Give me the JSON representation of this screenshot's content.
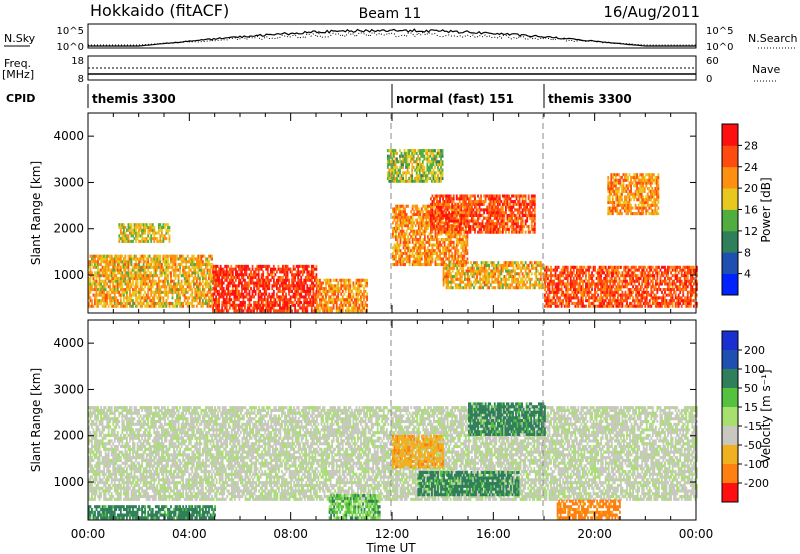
{
  "header": {
    "station": "Hokkaido (fitACF)",
    "beam": "Beam 11",
    "date": "16/Aug/2011"
  },
  "status_panels": {
    "nsky": {
      "label": "N.Sky",
      "ticks": [
        "10^5",
        "10^0"
      ]
    },
    "nsearch": {
      "label": "N.Search",
      "ticks": [
        "10^5",
        "10^0"
      ]
    },
    "freq": {
      "label_line1": "Freq.",
      "label_line2": "[MHz]",
      "ticks": [
        "18",
        "8"
      ]
    },
    "nave": {
      "label": "Nave",
      "ticks": [
        "60",
        "0"
      ]
    },
    "cpid": {
      "label": "CPID",
      "segments": [
        {
          "name": "themis 3300",
          "start_hour": 0
        },
        {
          "name": "normal (fast) 151",
          "start_hour": 12
        },
        {
          "name": "themis 3300",
          "start_hour": 18
        }
      ]
    }
  },
  "chart_data": [
    {
      "type": "heatmap",
      "panel": "power",
      "ylabel": "Slant Range [km]",
      "xlabel": "",
      "y_ticks": [
        "1000",
        "2000",
        "3000",
        "4000"
      ],
      "ylim": [
        180,
        4500
      ],
      "xlim_hours": [
        0,
        24
      ],
      "colorbar": {
        "label": "Power [dB]",
        "ticks": [
          "4",
          "8",
          "12",
          "16",
          "20",
          "24",
          "28"
        ],
        "colors": [
          "#0022ff",
          "#1f4fb0",
          "#2f7f5a",
          "#4fae3f",
          "#e8c81f",
          "#ff8f10",
          "#ff4a10",
          "#ff1010"
        ]
      },
      "regions": [
        {
          "t0": 4.9,
          "t1": 9.0,
          "r0": 200,
          "r1": 1200,
          "value": 28
        },
        {
          "t0": 0.0,
          "t1": 4.9,
          "r0": 300,
          "r1": 1400,
          "value": 20
        },
        {
          "t0": 9.0,
          "t1": 11.0,
          "r0": 200,
          "r1": 900,
          "value": 22
        },
        {
          "t0": 12.0,
          "t1": 15.0,
          "r0": 1200,
          "r1": 2500,
          "value": 22
        },
        {
          "t0": 13.5,
          "t1": 16.2,
          "r0": 1900,
          "r1": 2700,
          "value": 26
        },
        {
          "t0": 15.8,
          "t1": 17.6,
          "r0": 1900,
          "r1": 2700,
          "value": 26
        },
        {
          "t0": 18.0,
          "t1": 24.0,
          "r0": 300,
          "r1": 1200,
          "value": 26
        },
        {
          "t0": 11.8,
          "t1": 14.0,
          "r0": 3000,
          "r1": 3700,
          "value": 16
        },
        {
          "t0": 14.0,
          "t1": 18.0,
          "r0": 700,
          "r1": 1300,
          "value": 20
        },
        {
          "t0": 20.5,
          "t1": 22.5,
          "r0": 2300,
          "r1": 3200,
          "value": 22
        },
        {
          "t0": 1.2,
          "t1": 3.2,
          "r0": 1700,
          "r1": 2100,
          "value": 18
        }
      ]
    },
    {
      "type": "heatmap",
      "panel": "velocity",
      "ylabel": "Slant Range [km]",
      "xlabel": "Time UT",
      "x_ticks": [
        "00:00",
        "04:00",
        "08:00",
        "12:00",
        "16:00",
        "20:00",
        "00:00"
      ],
      "y_ticks": [
        "1000",
        "2000",
        "3000",
        "4000"
      ],
      "ylim": [
        180,
        4500
      ],
      "xlim_hours": [
        0,
        24
      ],
      "colorbar": {
        "label": "Velocity [m s⁻¹]",
        "ticks": [
          "200",
          "100",
          "50",
          "15",
          "-15",
          "-50",
          "-100",
          "-200"
        ],
        "colors": [
          "#1a2fd0",
          "#1f4fb0",
          "#2f7f5a",
          "#55c23f",
          "#a8e070",
          "#c8c8c0",
          "#f0b020",
          "#ff8010",
          "#ff1010"
        ]
      },
      "regions": [
        {
          "t0": 0.0,
          "t1": 24.0,
          "r0": 600,
          "r1": 2600,
          "value": 0
        },
        {
          "t0": 0.0,
          "t1": 5.0,
          "r0": 200,
          "r1": 500,
          "value": 40
        },
        {
          "t0": 13.0,
          "t1": 17.0,
          "r0": 700,
          "r1": 1200,
          "value": 40
        },
        {
          "t0": 15.0,
          "t1": 18.0,
          "r0": 2000,
          "r1": 2700,
          "value": 40
        },
        {
          "t0": 12.0,
          "t1": 14.0,
          "r0": 1300,
          "r1": 2000,
          "value": -40
        },
        {
          "t0": 18.5,
          "t1": 21.0,
          "r0": 200,
          "r1": 600,
          "value": -60
        },
        {
          "t0": 9.5,
          "t1": 11.5,
          "r0": 200,
          "r1": 700,
          "value": 20
        }
      ]
    }
  ]
}
